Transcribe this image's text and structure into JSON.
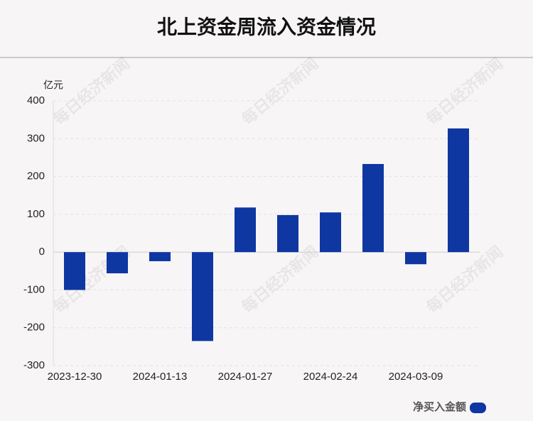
{
  "chart_data": {
    "type": "bar",
    "title": "北上资金周流入资金情况",
    "y_axis_label": "亿元",
    "categories": [
      "2023-12-30",
      null,
      "2024-01-13",
      null,
      "2024-01-27",
      null,
      "2024-02-24",
      null,
      "2024-03-09",
      null
    ],
    "series": [
      {
        "name": "净买入金额",
        "color": "#0e37a1",
        "values": [
          -100,
          -56,
          -24,
          -235,
          118,
          98,
          105,
          233,
          -32,
          327
        ]
      }
    ],
    "ylim": [
      -300,
      400
    ],
    "yticks": [
      -300,
      -200,
      -100,
      0,
      100,
      200,
      300,
      400
    ],
    "grid": true,
    "legend": "bottom-right"
  },
  "watermark": "每日经济新闻"
}
